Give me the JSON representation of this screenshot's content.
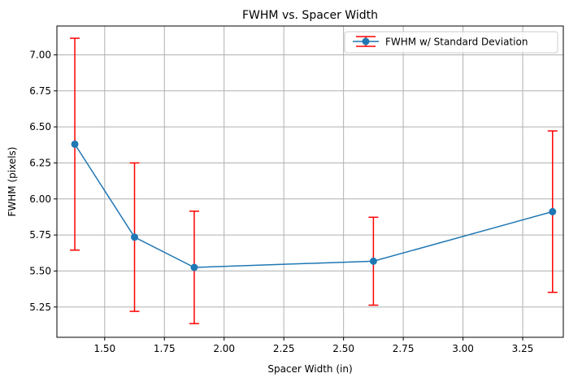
{
  "chart_data": {
    "type": "line",
    "title": "FWHM vs. Spacer Width",
    "xlabel": "Spacer Width (in)",
    "ylabel": "FWHM (pixels)",
    "xlim": [
      1.3,
      3.42
    ],
    "ylim": [
      5.04,
      7.2
    ],
    "grid": true,
    "legend_position": "top-right",
    "x_ticks": [
      "1.50",
      "1.75",
      "2.00",
      "2.25",
      "2.50",
      "2.75",
      "3.00",
      "3.25"
    ],
    "y_ticks": [
      "5.25",
      "5.50",
      "5.75",
      "6.00",
      "6.25",
      "6.50",
      "6.75",
      "7.00"
    ],
    "series": [
      {
        "name": "FWHM w/ Standard Deviation",
        "color": "#1f77b4",
        "error_color": "#ff0000",
        "x": [
          1.375,
          1.625,
          1.875,
          2.625,
          3.375
        ],
        "y": [
          6.38,
          5.735,
          5.525,
          5.568,
          5.912
        ],
        "yerr": [
          0.735,
          0.515,
          0.39,
          0.305,
          0.56
        ]
      }
    ]
  }
}
